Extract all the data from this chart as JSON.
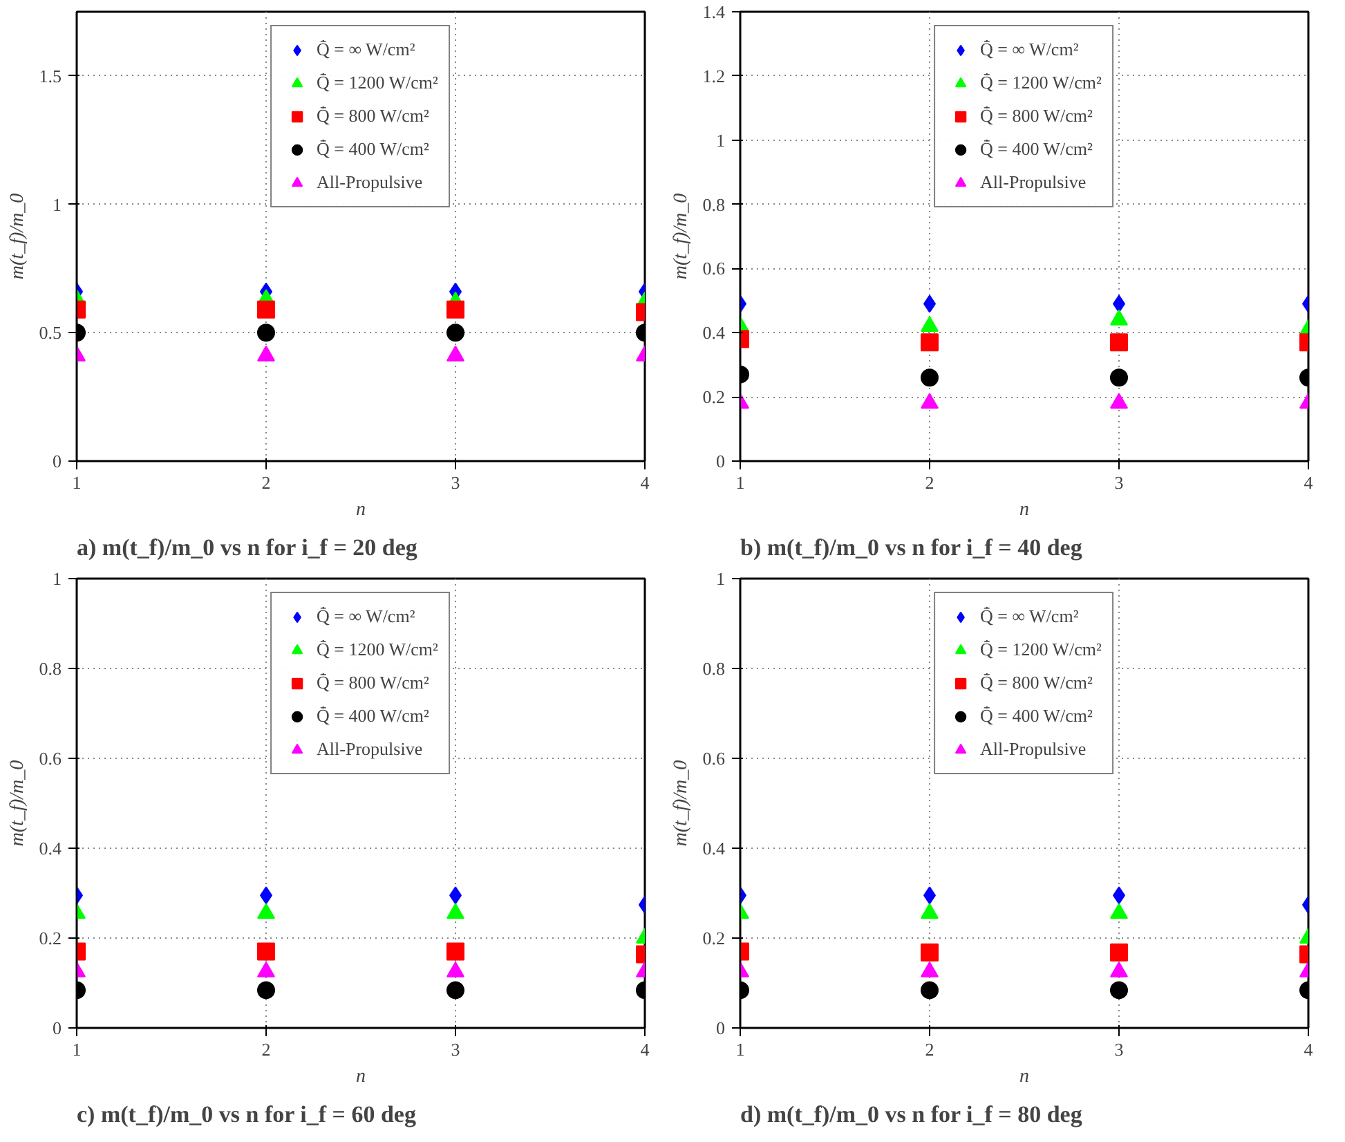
{
  "chart_data": [
    {
      "type": "scatter",
      "title": "a) m(t_f)/m_0 vs n for i_f = 20 deg",
      "xlabel": "n",
      "ylabel": "m(t_f)/m_0",
      "x": [
        1,
        2,
        3,
        4
      ],
      "xlim": [
        1,
        4
      ],
      "xticks": [
        1,
        2,
        3,
        4
      ],
      "ylim": [
        0,
        1.75
      ],
      "yticks": [
        0,
        0.5,
        1,
        1.5
      ],
      "grid": true,
      "legend": "top",
      "series": [
        {
          "name": "Q̄̇ = ∞ W/cm²",
          "color": "#0000ff",
          "marker": "diamond",
          "values": [
            0.66,
            0.66,
            0.66,
            0.66
          ]
        },
        {
          "name": "Q̄̇ = 1200 W/cm²",
          "color": "#00ff00",
          "marker": "triangle",
          "values": [
            0.63,
            0.63,
            0.62,
            0.62
          ]
        },
        {
          "name": "Q̄̇ = 800 W/cm²",
          "color": "#ff0000",
          "marker": "square",
          "values": [
            0.59,
            0.59,
            0.59,
            0.58
          ]
        },
        {
          "name": "Q̄̇ = 400 W/cm²",
          "color": "#000000",
          "marker": "circle",
          "values": [
            0.5,
            0.5,
            0.5,
            0.5
          ]
        },
        {
          "name": "All-Propulsive",
          "color": "#ff00ff",
          "marker": "triangle",
          "values": [
            0.41,
            0.41,
            0.41,
            0.41
          ]
        }
      ]
    },
    {
      "type": "scatter",
      "title": "b) m(t_f)/m_0 vs n for i_f = 40 deg",
      "xlabel": "n",
      "ylabel": "m(t_f)/m_0",
      "x": [
        1,
        2,
        3,
        4
      ],
      "xlim": [
        1,
        4
      ],
      "xticks": [
        1,
        2,
        3,
        4
      ],
      "ylim": [
        0,
        1.4
      ],
      "yticks": [
        0,
        0.2,
        0.4,
        0.6,
        0.8,
        1,
        1.2,
        1.4
      ],
      "grid": true,
      "legend": "top",
      "series": [
        {
          "name": "Q̄̇ = ∞ W/cm²",
          "color": "#0000ff",
          "marker": "diamond",
          "values": [
            0.49,
            0.49,
            0.49,
            0.49
          ]
        },
        {
          "name": "Q̄̇ = 1200 W/cm²",
          "color": "#00ff00",
          "marker": "triangle",
          "values": [
            0.42,
            0.42,
            0.44,
            0.41
          ]
        },
        {
          "name": "Q̄̇ = 800 W/cm²",
          "color": "#ff0000",
          "marker": "square",
          "values": [
            0.38,
            0.37,
            0.37,
            0.37
          ]
        },
        {
          "name": "Q̄̇ = 400 W/cm²",
          "color": "#000000",
          "marker": "circle",
          "values": [
            0.27,
            0.26,
            0.26,
            0.26
          ]
        },
        {
          "name": "All-Propulsive",
          "color": "#ff00ff",
          "marker": "triangle",
          "values": [
            0.18,
            0.18,
            0.18,
            0.18
          ]
        }
      ]
    },
    {
      "type": "scatter",
      "title": "c) m(t_f)/m_0 vs n for i_f = 60 deg",
      "xlabel": "n",
      "ylabel": "m(t_f)/m_0",
      "x": [
        1,
        2,
        3,
        4
      ],
      "xlim": [
        1,
        4
      ],
      "xticks": [
        1,
        2,
        3,
        4
      ],
      "ylim": [
        0,
        1
      ],
      "yticks": [
        0,
        0.2,
        0.4,
        0.6,
        0.8,
        1
      ],
      "grid": true,
      "legend": "top",
      "series": [
        {
          "name": "Q̄̇ = ∞ W/cm²",
          "color": "#0000ff",
          "marker": "diamond",
          "values": [
            0.295,
            0.295,
            0.295,
            0.274
          ]
        },
        {
          "name": "Q̄̇ = 1200 W/cm²",
          "color": "#00ff00",
          "marker": "triangle",
          "values": [
            0.255,
            0.255,
            0.255,
            0.2
          ]
        },
        {
          "name": "Q̄̇ = 800 W/cm²",
          "color": "#ff0000",
          "marker": "square",
          "values": [
            0.17,
            0.17,
            0.17,
            0.164
          ]
        },
        {
          "name": "Q̄̇ = 400 W/cm²",
          "color": "#000000",
          "marker": "circle",
          "values": [
            0.084,
            0.084,
            0.084,
            0.084
          ]
        },
        {
          "name": "All-Propulsive",
          "color": "#ff00ff",
          "marker": "triangle",
          "values": [
            0.125,
            0.125,
            0.125,
            0.125
          ]
        }
      ]
    },
    {
      "type": "scatter",
      "title": "d) m(t_f)/m_0 vs n for i_f = 80 deg",
      "xlabel": "n",
      "ylabel": "m(t_f)/m_0",
      "x": [
        1,
        2,
        3,
        4
      ],
      "xlim": [
        1,
        4
      ],
      "xticks": [
        1,
        2,
        3,
        4
      ],
      "ylim": [
        0,
        1
      ],
      "yticks": [
        0,
        0.2,
        0.4,
        0.6,
        0.8,
        1
      ],
      "grid": true,
      "legend": "top",
      "series": [
        {
          "name": "Q̄̇ = ∞ W/cm²",
          "color": "#0000ff",
          "marker": "diamond",
          "values": [
            0.295,
            0.295,
            0.295,
            0.274
          ]
        },
        {
          "name": "Q̄̇ = 1200 W/cm²",
          "color": "#00ff00",
          "marker": "triangle",
          "values": [
            0.255,
            0.255,
            0.255,
            0.2
          ]
        },
        {
          "name": "Q̄̇ = 800 W/cm²",
          "color": "#ff0000",
          "marker": "square",
          "values": [
            0.17,
            0.168,
            0.168,
            0.164
          ]
        },
        {
          "name": "Q̄̇ = 400 W/cm²",
          "color": "#000000",
          "marker": "circle",
          "values": [
            0.084,
            0.084,
            0.084,
            0.084
          ]
        },
        {
          "name": "All-Propulsive",
          "color": "#ff00ff",
          "marker": "triangle",
          "values": [
            0.125,
            0.125,
            0.125,
            0.125
          ]
        }
      ]
    }
  ]
}
